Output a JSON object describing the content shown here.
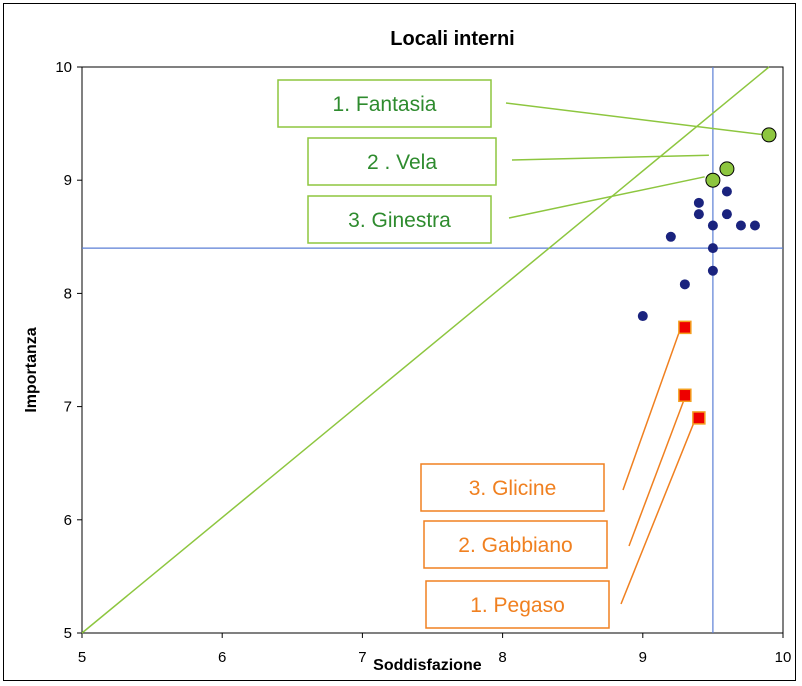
{
  "chart_data": {
    "type": "scatter",
    "title": "Locali interni",
    "xlabel": "Soddisfazione",
    "ylabel": "Importanza",
    "xlim": [
      5,
      10
    ],
    "ylim": [
      5,
      10
    ],
    "xticks": [
      5,
      6,
      7,
      8,
      9,
      10
    ],
    "yticks": [
      5,
      6,
      7,
      8,
      9,
      10
    ],
    "reference_lines": {
      "x": 9.5,
      "y": 8.4
    },
    "diagonal": {
      "from": [
        5,
        5
      ],
      "to": [
        9.9,
        10
      ]
    },
    "colors": {
      "axis_line": "#5b7fd6",
      "diagonal": "#8dc63f",
      "top": "#8dc63f",
      "others": "#1a237e",
      "bottom": "#ee0000",
      "top_text": "#2e8b2e",
      "bottom_text": "#f08020"
    },
    "series": [
      {
        "role": "others",
        "points": [
          {
            "x": 9.4,
            "y": 8.8
          },
          {
            "x": 9.4,
            "y": 8.7
          },
          {
            "x": 9.5,
            "y": 8.6
          },
          {
            "x": 9.6,
            "y": 8.9
          },
          {
            "x": 9.6,
            "y": 8.7
          },
          {
            "x": 9.7,
            "y": 8.6
          },
          {
            "x": 9.8,
            "y": 8.6
          },
          {
            "x": 9.2,
            "y": 8.5
          },
          {
            "x": 9.5,
            "y": 8.4
          },
          {
            "x": 9.5,
            "y": 8.2
          },
          {
            "x": 9.3,
            "y": 8.08
          },
          {
            "x": 9.0,
            "y": 7.8
          }
        ]
      },
      {
        "role": "top",
        "points": [
          {
            "x": 9.9,
            "y": 9.4
          },
          {
            "x": 9.6,
            "y": 9.1
          },
          {
            "x": 9.5,
            "y": 9.0
          }
        ]
      },
      {
        "role": "bottom",
        "points": [
          {
            "x": 9.3,
            "y": 7.7
          },
          {
            "x": 9.3,
            "y": 7.1
          },
          {
            "x": 9.4,
            "y": 6.9
          }
        ]
      }
    ],
    "annotations": [
      {
        "text": "1. Fantasia",
        "group": "top",
        "target": [
          9.9,
          9.4
        ]
      },
      {
        "text": "2 . Vela",
        "group": "top",
        "target": [
          9.5,
          9.22
        ]
      },
      {
        "text": "3. Ginestra",
        "group": "top",
        "target": [
          9.47,
          9.03
        ]
      },
      {
        "text": "3. Glicine",
        "group": "bottom",
        "target": [
          9.3,
          7.7
        ]
      },
      {
        "text": "2. Gabbiano",
        "group": "bottom",
        "target": [
          9.35,
          7.15
        ]
      },
      {
        "text": "1. Pegaso",
        "group": "bottom",
        "target": [
          9.4,
          6.88
        ]
      }
    ]
  }
}
